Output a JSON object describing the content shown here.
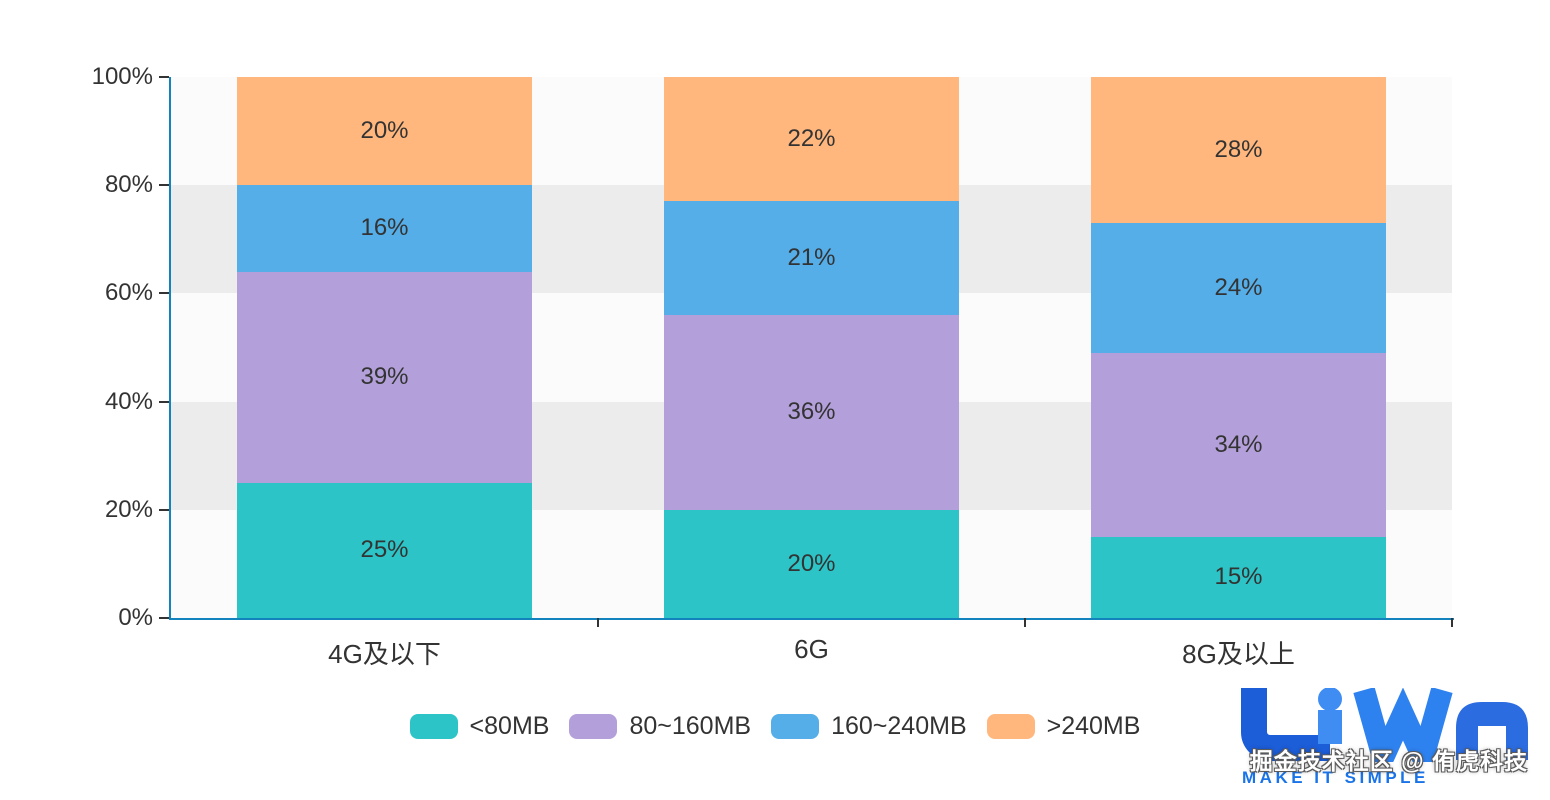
{
  "chart_data": {
    "type": "bar",
    "stacked": true,
    "percent_stack": true,
    "title": "",
    "xlabel": "",
    "ylabel": "",
    "categories": [
      "4G及以下",
      "6G",
      "8G及以上"
    ],
    "series": [
      {
        "name": "<80MB",
        "color": "#2cc4c6",
        "values": [
          25,
          20,
          15
        ]
      },
      {
        "name": "80~160MB",
        "color": "#b3a0da",
        "values": [
          39,
          36,
          34
        ]
      },
      {
        "name": "160~240MB",
        "color": "#55aee8",
        "values": [
          16,
          21,
          24
        ]
      },
      {
        "name": ">240MB",
        "color": "#ffb77d",
        "values": [
          20,
          22,
          28
        ]
      }
    ],
    "value_suffix": "%",
    "ylim": [
      0,
      100
    ],
    "y_ticks": [
      "0%",
      "20%",
      "40%",
      "60%",
      "80%",
      "100%"
    ],
    "grid": {
      "zebra_bands": true,
      "band_light": "#fbfbfb",
      "band_dark": "#ececec"
    },
    "axis_color": "#1283bd",
    "tick_color": "#333333",
    "label_color": "#333333",
    "legend_position": "bottom"
  },
  "watermark": {
    "credit_text": "掘金技术社区 @ 侑虎科技",
    "logo_text": "UWA",
    "tagline": "MAKE IT SIMPLE"
  }
}
